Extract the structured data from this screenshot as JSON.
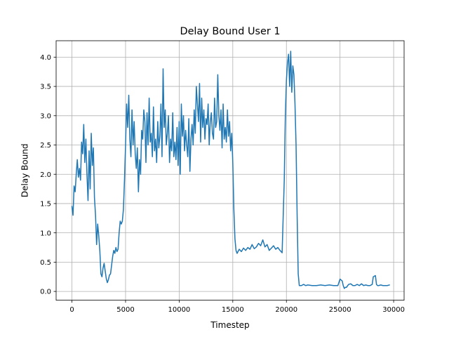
{
  "chart_data": {
    "type": "line",
    "title": "Delay Bound User 1",
    "xlabel": "Timestep",
    "ylabel": "Delay Bound",
    "xlim": [
      -1475,
      30975
    ],
    "ylim": [
      -0.15,
      4.28
    ],
    "x_ticks": [
      0,
      5000,
      10000,
      15000,
      20000,
      25000,
      30000
    ],
    "x_tick_labels": [
      "0",
      "5000",
      "10000",
      "15000",
      "20000",
      "25000",
      "30000"
    ],
    "y_ticks": [
      0.0,
      0.5,
      1.0,
      1.5,
      2.0,
      2.5,
      3.0,
      3.5,
      4.0
    ],
    "y_tick_labels": [
      "0.0",
      "0.5",
      "1.0",
      "1.5",
      "2.0",
      "2.5",
      "3.0",
      "3.5",
      "4.0"
    ],
    "grid": true,
    "legend": "none",
    "series": [
      {
        "color": "#1f77b4",
        "x": [
          0,
          100,
          200,
          300,
          400,
          500,
          600,
          700,
          800,
          900,
          1000,
          1100,
          1200,
          1300,
          1400,
          1500,
          1600,
          1700,
          1800,
          1900,
          2000,
          2100,
          2200,
          2300,
          2400,
          2500,
          2600,
          2700,
          2800,
          2900,
          3000,
          3100,
          3200,
          3300,
          3400,
          3500,
          3600,
          3700,
          3800,
          3900,
          4000,
          4100,
          4200,
          4300,
          4400,
          4500,
          4600,
          4700,
          4800,
          4900,
          5000,
          5100,
          5200,
          5300,
          5400,
          5500,
          5600,
          5700,
          5800,
          5900,
          6000,
          6100,
          6200,
          6300,
          6400,
          6500,
          6600,
          6700,
          6800,
          6900,
          7000,
          7100,
          7200,
          7300,
          7400,
          7500,
          7600,
          7700,
          7800,
          7900,
          8000,
          8100,
          8200,
          8300,
          8400,
          8500,
          8600,
          8700,
          8800,
          8900,
          9000,
          9100,
          9200,
          9300,
          9400,
          9500,
          9600,
          9700,
          9800,
          9900,
          10000,
          10100,
          10200,
          10300,
          10400,
          10500,
          10600,
          10700,
          10800,
          10900,
          11000,
          11100,
          11200,
          11300,
          11400,
          11500,
          11600,
          11700,
          11800,
          11900,
          12000,
          12100,
          12200,
          12300,
          12400,
          12500,
          12600,
          12700,
          12800,
          12900,
          13000,
          13100,
          13200,
          13300,
          13400,
          13500,
          13600,
          13700,
          13800,
          13900,
          14000,
          14100,
          14200,
          14300,
          14400,
          14500,
          14600,
          14700,
          14800,
          14900,
          15000,
          15100,
          15200,
          15300,
          15400,
          15600,
          15800,
          16000,
          16200,
          16400,
          16600,
          16800,
          17000,
          17200,
          17400,
          17600,
          17800,
          18000,
          18200,
          18400,
          18600,
          18800,
          19000,
          19200,
          19400,
          19600,
          19800,
          19900,
          20000,
          20100,
          20200,
          20300,
          20400,
          20500,
          20600,
          20700,
          20800,
          20900,
          21000,
          21100,
          21200,
          21300,
          21400,
          21600,
          21800,
          22000,
          22400,
          22800,
          23200,
          23600,
          24000,
          24400,
          24800,
          25000,
          25200,
          25300,
          25400,
          25500,
          25600,
          25800,
          26000,
          26200,
          26400,
          26600,
          26800,
          27000,
          27200,
          27400,
          27600,
          27800,
          28000,
          28100,
          28200,
          28300,
          28400,
          28500,
          28600,
          28800,
          29000,
          29200,
          29400,
          29600
        ],
        "y": [
          1.45,
          1.3,
          1.8,
          1.7,
          2.0,
          2.25,
          1.95,
          2.1,
          1.9,
          2.55,
          2.35,
          2.85,
          2.2,
          2.6,
          2.0,
          1.55,
          2.4,
          1.75,
          2.7,
          2.15,
          2.45,
          1.6,
          1.3,
          0.8,
          1.15,
          0.95,
          0.7,
          0.3,
          0.25,
          0.4,
          0.48,
          0.35,
          0.22,
          0.15,
          0.2,
          0.28,
          0.3,
          0.45,
          0.6,
          0.7,
          0.65,
          0.75,
          0.68,
          0.72,
          1.0,
          1.2,
          1.15,
          1.2,
          1.4,
          1.9,
          2.5,
          3.2,
          2.8,
          3.35,
          2.6,
          2.3,
          3.1,
          2.5,
          2.9,
          2.35,
          2.1,
          2.45,
          1.7,
          2.25,
          2.0,
          2.75,
          2.6,
          3.1,
          2.9,
          2.2,
          3.05,
          2.5,
          3.3,
          2.55,
          2.7,
          2.3,
          3.15,
          2.4,
          2.6,
          2.2,
          2.9,
          2.45,
          2.65,
          3.2,
          2.3,
          3.8,
          2.8,
          3.1,
          2.5,
          2.7,
          3.0,
          2.2,
          2.6,
          2.4,
          3.05,
          2.3,
          2.55,
          2.25,
          2.8,
          2.15,
          2.9,
          2.0,
          3.2,
          2.65,
          3.0,
          2.4,
          2.75,
          2.5,
          2.3,
          2.95,
          2.05,
          2.6,
          2.85,
          2.5,
          3.1,
          2.7,
          3.5,
          3.2,
          2.9,
          3.55,
          2.55,
          3.3,
          2.8,
          3.1,
          2.6,
          2.95,
          2.85,
          3.2,
          2.5,
          2.9,
          3.05,
          2.7,
          2.6,
          3.3,
          2.8,
          2.9,
          3.7,
          3.0,
          2.75,
          3.1,
          2.45,
          3.2,
          2.6,
          2.8,
          2.55,
          3.1,
          2.65,
          2.9,
          2.4,
          2.7,
          2.2,
          1.4,
          0.9,
          0.7,
          0.65,
          0.72,
          0.68,
          0.74,
          0.7,
          0.75,
          0.72,
          0.8,
          0.73,
          0.76,
          0.82,
          0.78,
          0.88,
          0.76,
          0.8,
          0.7,
          0.74,
          0.78,
          0.72,
          0.75,
          0.7,
          0.66,
          1.9,
          3.0,
          3.6,
          3.9,
          4.05,
          3.5,
          4.1,
          3.4,
          3.85,
          3.7,
          3.2,
          2.5,
          1.3,
          0.3,
          0.1,
          0.1,
          0.1,
          0.12,
          0.1,
          0.11,
          0.1,
          0.1,
          0.11,
          0.1,
          0.11,
          0.1,
          0.1,
          0.21,
          0.18,
          0.1,
          0.05,
          0.07,
          0.07,
          0.12,
          0.13,
          0.1,
          0.1,
          0.12,
          0.1,
          0.13,
          0.1,
          0.11,
          0.1,
          0.1,
          0.12,
          0.25,
          0.26,
          0.27,
          0.12,
          0.1,
          0.1,
          0.11,
          0.1,
          0.1,
          0.1,
          0.11
        ]
      }
    ]
  }
}
